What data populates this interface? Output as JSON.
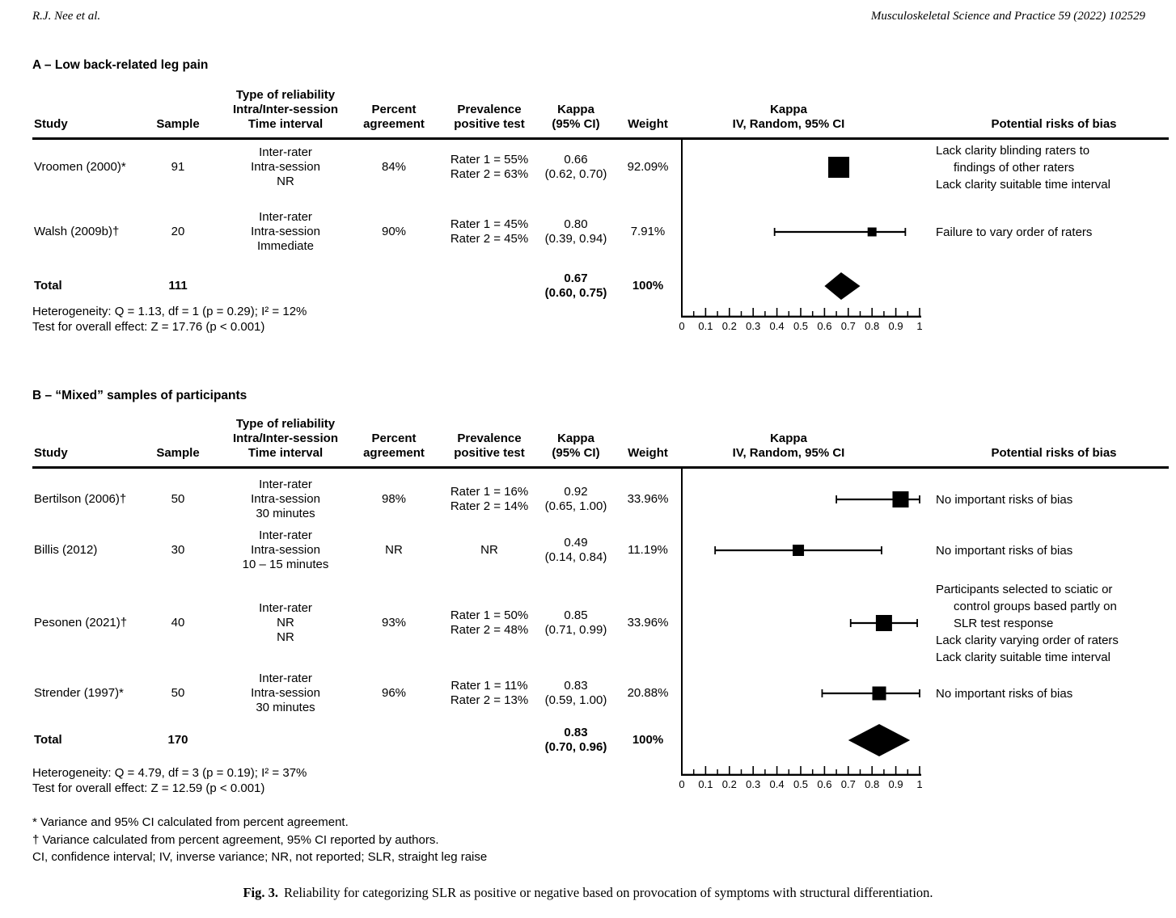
{
  "page": {
    "author_header": "R.J. Nee et al.",
    "journal_header": "Musculoskeletal Science and Practice 59 (2022) 102529",
    "caption": {
      "label": "Fig. 3.",
      "text": "Reliability for categorizing SLR as positive or negative based on provocation of symptoms with structural differentiation."
    },
    "footnotes": [
      "* Variance and 95% CI calculated from percent agreement.",
      "† Variance calculated from percent agreement, 95% CI reported by authors.",
      "CI, confidence interval; IV, inverse variance; NR, not reported; SLR, straight leg raise"
    ]
  },
  "columns": {
    "study": "Study",
    "sample": "Sample",
    "reliability": [
      "Type of reliability",
      "Intra/Inter-session",
      "Time interval"
    ],
    "percent": [
      "Percent",
      "agreement"
    ],
    "prevalence": [
      "Prevalence",
      "positive test"
    ],
    "kappa": [
      "Kappa",
      "(95% CI)"
    ],
    "weight": "Weight",
    "plot": [
      "Kappa",
      "IV, Random, 95% CI"
    ],
    "bias": "Potential risks  of bias"
  },
  "chart_data": [
    {
      "type": "forest",
      "panel": "A",
      "title": "A – Low back-related leg pain",
      "axis": {
        "min": 0,
        "max": 1,
        "minor_tick_step": 0.05,
        "tick_values": [
          0,
          0.1,
          0.2,
          0.3,
          0.4,
          0.5,
          0.6,
          0.7,
          0.8,
          0.9,
          1
        ],
        "tick_labels": [
          "0",
          "0.1",
          "0.2",
          "0.3",
          "0.4",
          "0.5",
          "0.6",
          "0.7",
          "0.8",
          "0.9",
          "1"
        ]
      },
      "studies": [
        {
          "study": "Vroomen (2000)*",
          "sample": "91",
          "reliability": [
            "Inter-rater",
            "Intra-session",
            "NR"
          ],
          "percent_agreement": "84%",
          "prevalence": [
            "Rater 1 = 55%",
            "Rater 2 = 63%"
          ],
          "kappa": 0.66,
          "ci_lower": 0.62,
          "ci_upper": 0.7,
          "kappa_text": [
            "0.66",
            "(0.62, 0.70)"
          ],
          "weight": 92.09,
          "weight_text": "92.09%",
          "bias": [
            [
              "Lack clarity blinding raters to",
              "findings of other raters"
            ],
            [
              "Lack clarity suitable time interval"
            ]
          ]
        },
        {
          "study": "Walsh (2009b)†",
          "sample": "20",
          "reliability": [
            "Inter-rater",
            "Intra-session",
            "Immediate"
          ],
          "percent_agreement": "90%",
          "prevalence": [
            "Rater 1 = 45%",
            "Rater 2 = 45%"
          ],
          "kappa": 0.8,
          "ci_lower": 0.39,
          "ci_upper": 0.94,
          "kappa_text": [
            "0.80",
            "(0.39, 0.94)"
          ],
          "weight": 7.91,
          "weight_text": "7.91%",
          "bias": [
            [
              "Failure to vary order of raters"
            ]
          ]
        }
      ],
      "total": {
        "label": "Total",
        "sample": "111",
        "kappa": 0.67,
        "ci_lower": 0.6,
        "ci_upper": 0.75,
        "kappa_text": [
          "0.67",
          "(0.60, 0.75)"
        ],
        "weight_text": "100%"
      },
      "heterogeneity": "Heterogeneity:  Q = 1.13, df = 1 (p = 0.29); I² = 12%",
      "overall_effect": "Test for overall  effect:  Z = 17.76  (p < 0.001)"
    },
    {
      "type": "forest",
      "panel": "B",
      "title": "B – “Mixed” samples of participants",
      "axis": {
        "min": 0,
        "max": 1,
        "minor_tick_step": 0.05,
        "tick_values": [
          0,
          0.1,
          0.2,
          0.3,
          0.4,
          0.5,
          0.6,
          0.7,
          0.8,
          0.9,
          1
        ],
        "tick_labels": [
          "0",
          "0.1",
          "0.2",
          "0.3",
          "0.4",
          "0.5",
          "0.6",
          "0.7",
          "0.8",
          "0.9",
          "1"
        ]
      },
      "studies": [
        {
          "study": "Bertilson (2006)†",
          "sample": "50",
          "reliability": [
            "Inter-rater",
            "Intra-session",
            "30 minutes"
          ],
          "percent_agreement": "98%",
          "prevalence": [
            "Rater 1 = 16%",
            "Rater 2 = 14%"
          ],
          "kappa": 0.92,
          "ci_lower": 0.65,
          "ci_upper": 1.0,
          "kappa_text": [
            "0.92",
            "(0.65, 1.00)"
          ],
          "weight": 33.96,
          "weight_text": "33.96%",
          "bias": [
            [
              "No important risks of bias"
            ]
          ]
        },
        {
          "study": "Billis (2012)",
          "sample": "30",
          "reliability": [
            "Inter-rater",
            "Intra-session",
            "10 – 15 minutes"
          ],
          "percent_agreement": "NR",
          "prevalence": [
            "NR"
          ],
          "kappa": 0.49,
          "ci_lower": 0.14,
          "ci_upper": 0.84,
          "kappa_text": [
            "0.49",
            "(0.14, 0.84)"
          ],
          "weight": 11.19,
          "weight_text": "11.19%",
          "bias": [
            [
              "No important risks of bias"
            ]
          ]
        },
        {
          "study": "Pesonen (2021)†",
          "sample": "40",
          "reliability": [
            "Inter-rater",
            "NR",
            "NR"
          ],
          "percent_agreement": "93%",
          "prevalence": [
            "Rater 1 = 50%",
            "Rater 2 = 48%"
          ],
          "kappa": 0.85,
          "ci_lower": 0.71,
          "ci_upper": 0.99,
          "kappa_text": [
            "0.85",
            "(0.71, 0.99)"
          ],
          "weight": 33.96,
          "weight_text": "33.96%",
          "bias": [
            [
              "Participants selected to sciatic or",
              "control groups  based partly on",
              "SLR test response"
            ],
            [
              "Lack clarity varying  order of raters"
            ],
            [
              "Lack clarity suitable time interval"
            ]
          ]
        },
        {
          "study": "Strender (1997)*",
          "sample": "50",
          "reliability": [
            "Inter-rater",
            "Intra-session",
            "30 minutes"
          ],
          "percent_agreement": "96%",
          "prevalence": [
            "Rater 1 = 11%",
            "Rater 2 = 13%"
          ],
          "kappa": 0.83,
          "ci_lower": 0.59,
          "ci_upper": 1.0,
          "kappa_text": [
            "0.83",
            "(0.59, 1.00)"
          ],
          "weight": 20.88,
          "weight_text": "20.88%",
          "bias": [
            [
              "No important risks of bias"
            ]
          ]
        }
      ],
      "total": {
        "label": "Total",
        "sample": "170",
        "kappa": 0.83,
        "ci_lower": 0.7,
        "ci_upper": 0.96,
        "kappa_text": [
          "0.83",
          "(0.70, 0.96)"
        ],
        "weight_text": "100%"
      },
      "heterogeneity": "Heterogeneity:  Q = 4.79, df = 3 (p = 0.19); I² = 37%",
      "overall_effect": "Test for overall  effect:  Z = 12.59 (p < 0.001)"
    }
  ]
}
